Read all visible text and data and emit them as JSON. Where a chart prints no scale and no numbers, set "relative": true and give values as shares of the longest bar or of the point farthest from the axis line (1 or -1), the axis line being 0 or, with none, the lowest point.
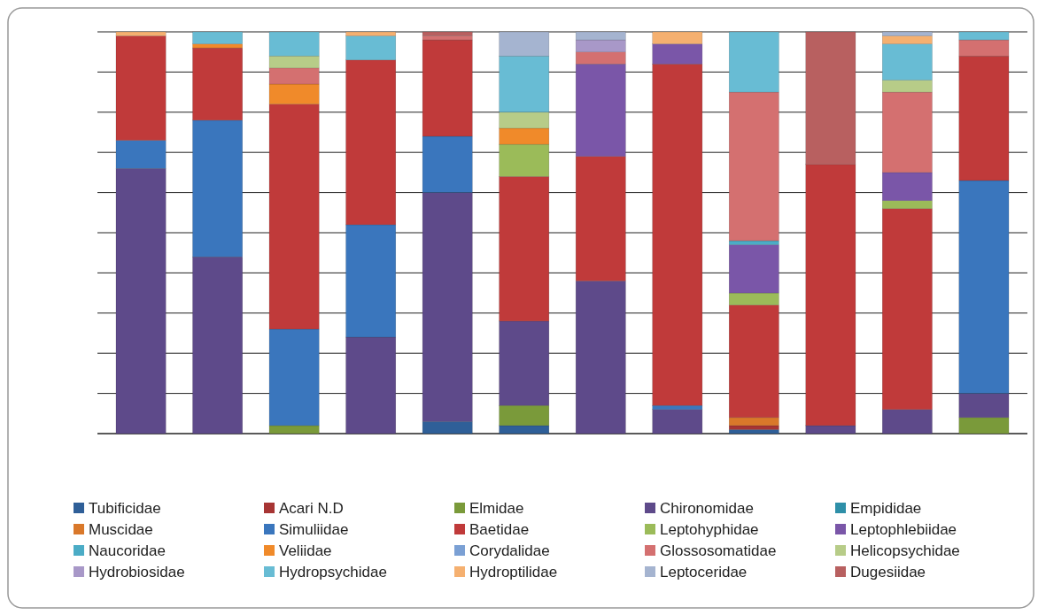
{
  "chart_data": {
    "type": "bar",
    "stacked": true,
    "relative": true,
    "grid": "y",
    "legend": "bottom",
    "categories": [
      null,
      null,
      null,
      null,
      null,
      null,
      null,
      null,
      null,
      null,
      null,
      null
    ],
    "series": [
      {
        "name": "Tubificidae",
        "color": "#2f5f98",
        "values": [
          0,
          0,
          0,
          0,
          0.03,
          0.02,
          0,
          0,
          0.01,
          0,
          0,
          0
        ]
      },
      {
        "name": "Acari N.D",
        "color": "#a73534",
        "values": [
          0,
          0,
          0,
          0,
          0,
          0,
          0,
          0,
          0.01,
          0,
          0,
          0
        ]
      },
      {
        "name": "Elmidae",
        "color": "#7a9a3a",
        "values": [
          0,
          0,
          0.02,
          0,
          0,
          0.05,
          0,
          0,
          0,
          0,
          0,
          0.04
        ]
      },
      {
        "name": "Chironomidae",
        "color": "#5e4a8a",
        "values": [
          0.66,
          0.44,
          0,
          0.24,
          0.57,
          0.21,
          0.38,
          0.06,
          0,
          0.02,
          0.06,
          0.06
        ]
      },
      {
        "name": "Empididae",
        "color": "#2e8fa8",
        "values": [
          0,
          0,
          0,
          0,
          0,
          0,
          0,
          0,
          0,
          0,
          0,
          0
        ]
      },
      {
        "name": "Muscidae",
        "color": "#d9782a",
        "values": [
          0,
          0,
          0,
          0,
          0,
          0,
          0,
          0,
          0.02,
          0,
          0,
          0
        ]
      },
      {
        "name": "Simuliidae",
        "color": "#3a76bd",
        "values": [
          0.07,
          0.34,
          0.24,
          0.28,
          0.14,
          0,
          0,
          0.01,
          0,
          0,
          0,
          0.53
        ]
      },
      {
        "name": "Baetidae",
        "color": "#c03a3a",
        "values": [
          0.26,
          0.18,
          0.56,
          0.41,
          0.24,
          0.36,
          0.31,
          0.85,
          0.28,
          0.65,
          0.5,
          0.31
        ]
      },
      {
        "name": "Leptohyphidae",
        "color": "#9bbb59",
        "values": [
          0,
          0,
          0,
          0,
          0,
          0.08,
          0,
          0,
          0.03,
          0,
          0.02,
          0
        ]
      },
      {
        "name": "Leptophlebiidae",
        "color": "#7a56a8",
        "values": [
          0,
          0,
          0,
          0,
          0,
          0,
          0.23,
          0.05,
          0.12,
          0,
          0.07,
          0
        ]
      },
      {
        "name": "Naucoridae",
        "color": "#4bacc6",
        "values": [
          0,
          0,
          0,
          0,
          0,
          0,
          0,
          0,
          0.01,
          0,
          0,
          0
        ]
      },
      {
        "name": "Veliidae",
        "color": "#f08a2a",
        "values": [
          0,
          0.01,
          0.05,
          0,
          0,
          0.04,
          0,
          0,
          0,
          0,
          0,
          0
        ]
      },
      {
        "name": "Corydalidae",
        "color": "#7ba0d4",
        "values": [
          0,
          0,
          0,
          0,
          0,
          0,
          0,
          0,
          0,
          0,
          0,
          0
        ]
      },
      {
        "name": "Glossosomatidae",
        "color": "#d47070",
        "values": [
          0,
          0,
          0.04,
          0,
          0.01,
          0,
          0.03,
          0,
          0.37,
          0,
          0.2,
          0.04
        ]
      },
      {
        "name": "Helicopsychidae",
        "color": "#b7cc88",
        "values": [
          0,
          0,
          0.03,
          0,
          0,
          0.04,
          0,
          0,
          0,
          0,
          0.03,
          0
        ]
      },
      {
        "name": "Hydrobiosidae",
        "color": "#a898c8",
        "values": [
          0,
          0,
          0,
          0,
          0,
          0,
          0.03,
          0,
          0,
          0,
          0,
          0
        ]
      },
      {
        "name": "Hydropsychidae",
        "color": "#68bcd4",
        "values": [
          0,
          0.03,
          0.06,
          0.06,
          0,
          0.14,
          0,
          0,
          0.15,
          0,
          0.09,
          0.02
        ]
      },
      {
        "name": "Hydroptilidae",
        "color": "#f5b070",
        "values": [
          0.01,
          0,
          0,
          0.01,
          0,
          0,
          0,
          0.03,
          0,
          0,
          0.02,
          0
        ]
      },
      {
        "name": "Leptoceridae",
        "color": "#a5b4d0",
        "values": [
          0,
          0,
          0,
          0,
          0,
          0.06,
          0.02,
          0,
          0,
          0,
          0.01,
          0
        ]
      },
      {
        "name": "Dugesiidae",
        "color": "#b86060",
        "values": [
          0,
          0,
          0,
          0,
          0.01,
          0,
          0,
          0,
          0,
          0.33,
          0,
          0
        ]
      }
    ]
  }
}
